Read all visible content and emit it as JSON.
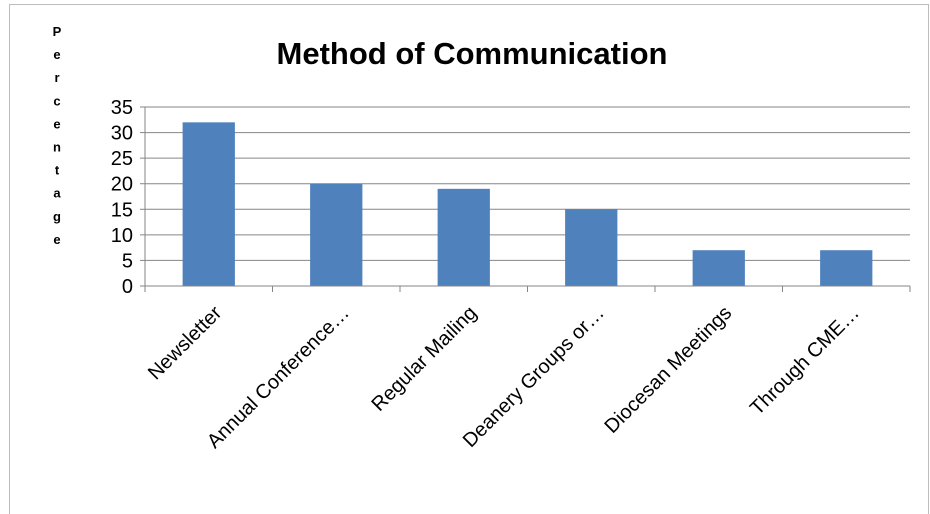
{
  "chart_data": {
    "type": "bar",
    "title": "Method of Communication",
    "ylabel": "Percentage",
    "xlabel": "",
    "categories": [
      "Newsletter",
      "Annual Conference…",
      "Regular Mailing",
      "Deanery Groups or…",
      "Diocesan Meetings",
      "Through CME…"
    ],
    "values": [
      32,
      20,
      19,
      15,
      7,
      7
    ],
    "ylim": [
      0,
      35
    ],
    "yticks": [
      0,
      5,
      10,
      15,
      20,
      25,
      30,
      35
    ],
    "grid": true,
    "legend": "none",
    "bar_color": "#4f81bd"
  }
}
